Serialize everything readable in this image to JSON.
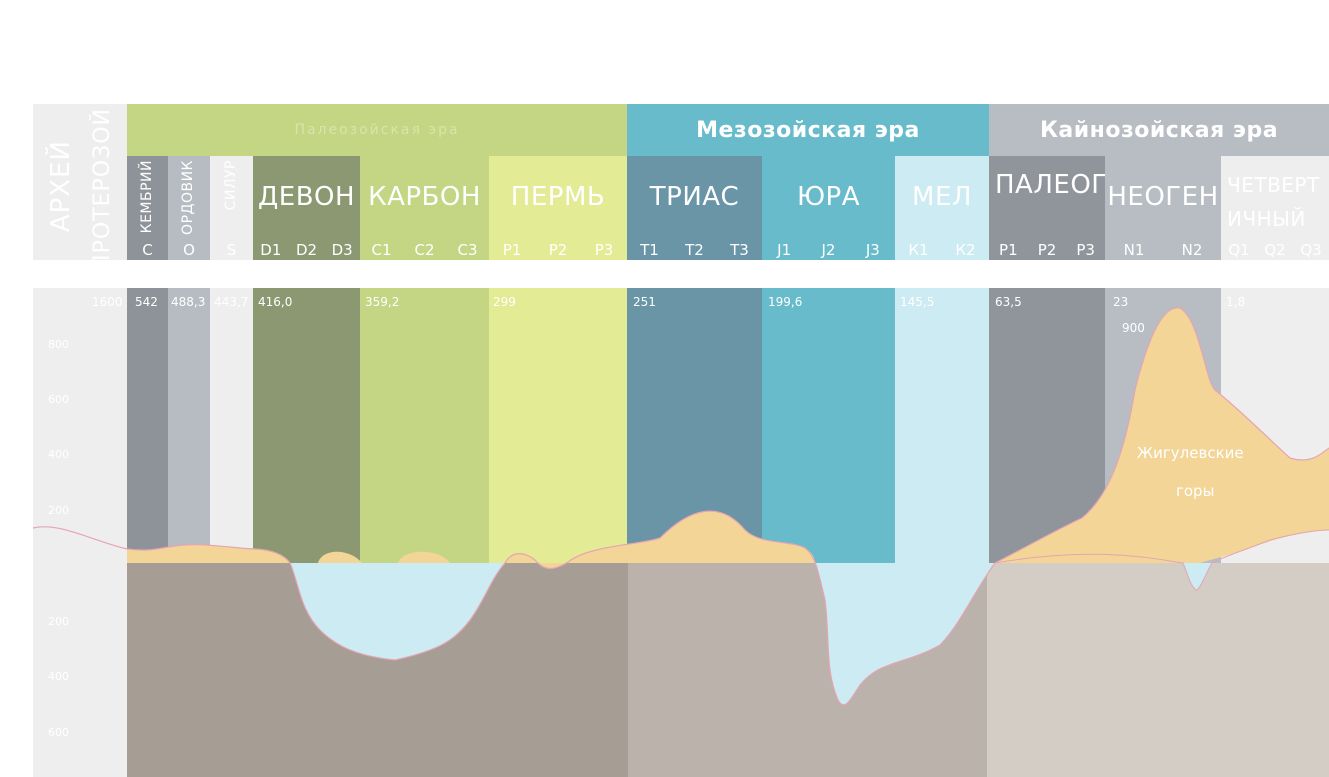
{
  "eras": {
    "paleozoic": "Палеозойская эра",
    "mesozoic": "Мезозойская эра",
    "cenozoic": "Кайнозойская эра"
  },
  "side_labels": {
    "archean": "АРХЕЙ",
    "proterozoic": "ПРОТЕРОЗОЙ"
  },
  "periods": {
    "cambrian": {
      "name": "КЕМБРИЙ",
      "epochs": [
        "С"
      ]
    },
    "ordovician": {
      "name": "ОРДОВИК",
      "epochs": [
        "О"
      ]
    },
    "silurian": {
      "name": "СИЛУР",
      "epochs": [
        "S"
      ]
    },
    "devonian": {
      "name": "ДЕВОН",
      "epochs": [
        "D1",
        "D2",
        "D3"
      ]
    },
    "carboniferous": {
      "name": "КАРБОН",
      "epochs": [
        "С1",
        "С2",
        "С3"
      ]
    },
    "permian": {
      "name": "ПЕРМЬ",
      "epochs": [
        "P1",
        "P2",
        "P3"
      ]
    },
    "triassic": {
      "name": "ТРИАС",
      "epochs": [
        "Т1",
        "Т2",
        "Т3"
      ]
    },
    "jurassic": {
      "name": "ЮРА",
      "epochs": [
        "J1",
        "J2",
        "J3"
      ]
    },
    "cretaceous": {
      "name": "МЕЛ",
      "epochs": [
        "К1",
        "К2"
      ]
    },
    "paleogene": {
      "name": "ПАЛЕОГЕН",
      "epochs": [
        "P1",
        "P2",
        "P3"
      ]
    },
    "neogene": {
      "name": "НЕОГЕН",
      "epochs": [
        "N1",
        "N2"
      ]
    },
    "quaternary": {
      "name": "ЧЕТВЕРТИЧНЫЙ",
      "epochs": [
        "Q1",
        "Q2",
        "Q3"
      ]
    }
  },
  "ages": {
    "proterozoic": "1600",
    "cambrian": "542",
    "ordovician": "488,3",
    "silurian": "443,7",
    "devonian": "416,0",
    "carboniferous": "359,2",
    "permian": "299",
    "triassic": "251",
    "jurassic": "199,6",
    "cretaceous": "145,5",
    "paleogene": "63,5",
    "neogene": "23",
    "quaternary": "1,8"
  },
  "elevation_ticks": [
    "800",
    "600",
    "400",
    "200",
    "200",
    "400",
    "600"
  ],
  "annotations": {
    "peak_height": "900",
    "mountains": "Жигулевские",
    "mountains_line2": "горы"
  },
  "colors": {
    "paleozoic": "#c4d584",
    "mesozoic": "#68bbca",
    "cenozoic": "#b8bdc3",
    "land": "#f2d597",
    "sea": "#cdebf3",
    "rock_paleozoic": "#a69e94",
    "rock_mesozoic": "#bab2ab",
    "rock_cenozoic": "#d3cdc6",
    "outline": "#e6a4b4"
  }
}
